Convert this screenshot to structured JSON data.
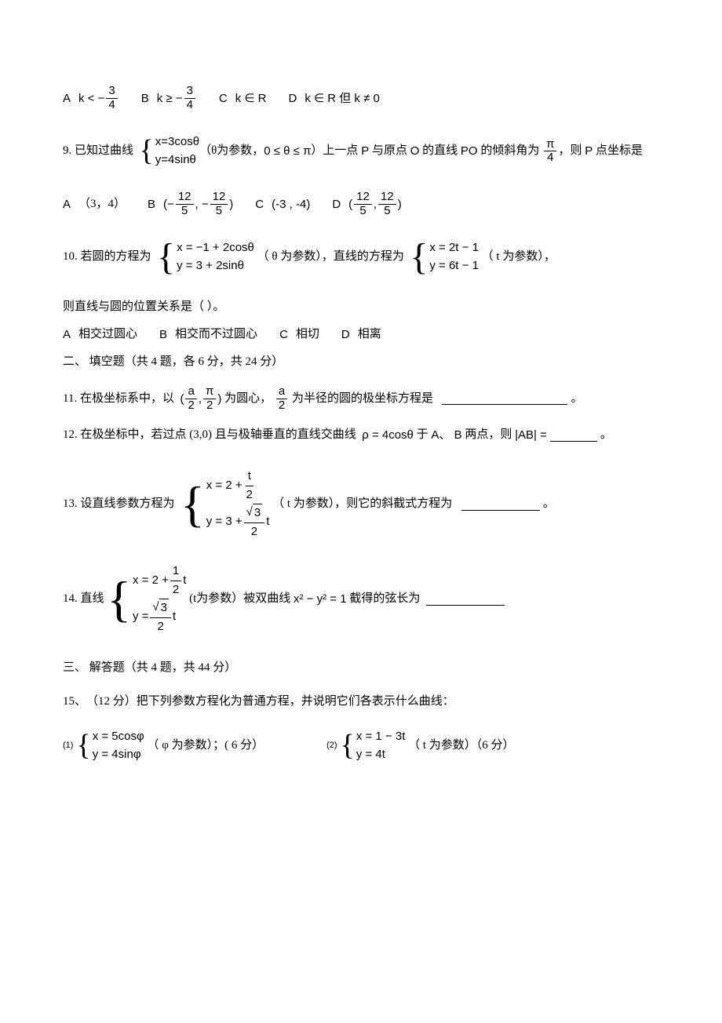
{
  "q8": {
    "optA_label": "A",
    "optA_pre": "k < −",
    "optA_num": "3",
    "optA_den": "4",
    "optB_label": "B",
    "optB_pre": "k ≥ −",
    "optB_num": "3",
    "optB_den": "4",
    "optC_label": "C",
    "optC_expr": "k ∈ R",
    "optD_label": "D",
    "optD_expr": "k ∈ R 但 k ≠ 0"
  },
  "q9": {
    "num": "9.",
    "text1": "已知过曲线",
    "case_x": "x=3cosθ",
    "case_y": "y=4sinθ",
    "text2": "（θ为参数，",
    "range": "0 ≤ θ ≤ π",
    "text3": "）上一点",
    "ptP": "P",
    "text4": "与原点",
    "ptO": "O",
    "text5": "的直线",
    "linePO": "PO",
    "text6": "的倾斜角为",
    "angle_num": "π",
    "angle_den": "4",
    "text7": "，则",
    "ptP2": "P",
    "text8": "点坐标是",
    "optA_label": "A",
    "optA_val": "（3，4）",
    "optB_label": "B",
    "optB_pre": "(−",
    "optB_n1": "12",
    "optB_d1": "5",
    "optB_mid": ", −",
    "optB_n2": "12",
    "optB_d2": "5",
    "optB_post": ")",
    "optC_label": "C",
    "optC_val": "(-3   , -4)",
    "optD_label": "D",
    "optD_pre": "(",
    "optD_n1": "12",
    "optD_d1": "5",
    "optD_mid": ", ",
    "optD_n2": "12",
    "optD_d2": "5",
    "optD_post": ")"
  },
  "q10": {
    "num": "10.",
    "text1": "若圆的方程为",
    "circ_x": "x = −1 + 2cosθ",
    "circ_y": "y = 3 + 2sinθ",
    "text2": "（ θ 为参数），直线的方程为",
    "line_x": "x = 2t − 1",
    "line_y": "y = 6t − 1",
    "text3": "（ t  为参数），",
    "text4": "则直线与圆的位置关系是（         ）。",
    "optA_label": "A",
    "optA_val": "相交过圆心",
    "optB_label": "B",
    "optB_val": "相交而不过圆心",
    "optC_label": "C",
    "optC_val": "相切",
    "optD_label": "D",
    "optD_val": "相离"
  },
  "section2": "二、 填空题（共   4 题，各  6 分，共  24 分）",
  "q11": {
    "num": "11.",
    "text1": "在极坐标系中，以",
    "c_pre": "(",
    "c_n1": "a",
    "c_d1": "2",
    "c_mid": ", ",
    "c_n2": "π",
    "c_d2": "2",
    "c_post": ")",
    "text2": "为圆心，",
    "r_num": "a",
    "r_den": "2",
    "text3": "为半径的圆的极坐标方程是",
    "period": "。"
  },
  "q12": {
    "num": "12.",
    "text1": "在极坐标中，若过点   (3,0) 且与极轴垂直的直线交曲线",
    "eq": "ρ = 4cosθ",
    "text2": "于",
    "pts": "A、 B",
    "text3": "两点，则",
    "ab_pre": "|",
    "ab_mid": "AB",
    "ab_post": "| =",
    "period": "。"
  },
  "q13": {
    "num": "13.",
    "text1": "设直线参数方程为",
    "x_pre": "x = 2 +",
    "x_num": "t",
    "x_den": "2",
    "y_pre": "y = 3 +",
    "y_rad": "3",
    "y_den": "2",
    "y_post": "t",
    "text2": "（ t 为参数），则它的斜截式方程为",
    "period": "。"
  },
  "q14": {
    "num": "14.",
    "text1": "直线",
    "x_pre": "x = 2 +",
    "x_num": "1",
    "x_den": "2",
    "x_post": "t",
    "y_pre": "y = ",
    "y_rad": "3",
    "y_den": "2",
    "y_post": "t",
    "text2": "(t为参数）被双曲线",
    "hyp": "x² − y² = 1",
    "text3": "截得的弦长为"
  },
  "section3": "三、 解答题（共   4 题，共  44 分）",
  "q15": {
    "num": "15、",
    "text1": "（12 分）把下列参数方程化为普通方程，并说明它们各表示什么曲线：",
    "s1_label": "(1)",
    "s1_x": "x = 5cosφ",
    "s1_y": "y = 4sinφ",
    "s1_note": "（ φ 为参数）；( 6 分）",
    "s2_label": "(2)",
    "s2_x": "x = 1 − 3t",
    "s2_y": "y = 4t",
    "s2_note": "（ t 为参数）（6 分）"
  }
}
